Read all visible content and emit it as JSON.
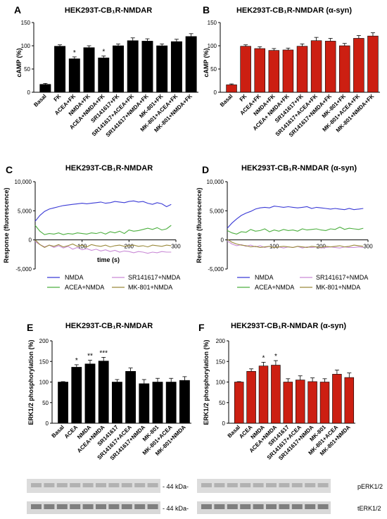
{
  "panels": {
    "A": {
      "letter": "A",
      "title": "HEK293T-CB₁R-NMDAR",
      "ylabel": "cAMP (%)"
    },
    "B": {
      "letter": "B",
      "title": "HEK293T-CB₁R-NMDAR (α-syn)",
      "ylabel": "cAMP (%)"
    },
    "C": {
      "letter": "C",
      "title": "HEK293T-CB₁R-NMDAR",
      "ylabel": "Response (fluorescence)",
      "xlabel": "time (s)"
    },
    "D": {
      "letter": "D",
      "title": "HEK293T-CB₁R-NMDAR (α-syn)",
      "ylabel": "Response (fluorescence)",
      "xlabel": "time (s)"
    },
    "E": {
      "letter": "E",
      "title": "HEK293T-CB₁R-NMDAR",
      "ylabel": "ERK1/2 phosphorylation (%)"
    },
    "F": {
      "letter": "F",
      "title": "HEK293T-CB₁R-NMDAR (α-syn)",
      "ylabel": "ERK1/2 phosphorylation (%)"
    }
  },
  "blots": {
    "marker_top": "- 44 kDa-",
    "marker_bottom": "- 44 kDa-",
    "label_top": "pERK1/2",
    "label_bottom": "tERK1/2"
  },
  "colors": {
    "black_bar": "#000000",
    "red_bar": "#cc1f12",
    "nmda": "#3b3bd6",
    "acea": "#4caf3f",
    "sr": "#c98bd6",
    "mk": "#9a8a3c"
  },
  "chart_data": [
    {
      "panel": "A",
      "type": "bar",
      "color": "black",
      "categories": [
        "Basal",
        "FK",
        "ACEA+FK",
        "NMDA+FK",
        "ACEA+NMDA+FK",
        "SR141617+FK",
        "SR141617+ACEA+FK",
        "SR141617+NMDA+FK",
        "MK-801+FK",
        "MK-801+ACEA+FK",
        "MK-801+NMDA+FK"
      ],
      "values": [
        17,
        99,
        72,
        96,
        74,
        100,
        111,
        110,
        100,
        109,
        120
      ],
      "errors": [
        2,
        3,
        4,
        4,
        4,
        4,
        6,
        5,
        4,
        5,
        6
      ],
      "annotations": [
        "",
        "",
        "*",
        "",
        "*",
        "",
        "",
        "",
        "",
        "",
        ""
      ],
      "ylim": [
        0,
        150
      ],
      "yticks": [
        0,
        50,
        100,
        150
      ]
    },
    {
      "panel": "B",
      "type": "bar",
      "color": "red",
      "categories": [
        "Basal",
        "FK",
        "ACEA+FK",
        "NMDA+FK",
        "ACEA+ NMDA+FK",
        "SR141617+FK",
        "SR141617+ACEA+FK",
        "SR141617+NMDA+FK",
        "MK-801+FK",
        "MK-801+ACEA+FK",
        "MK-801+NMDA+FK"
      ],
      "values": [
        16,
        99,
        94,
        90,
        91,
        99,
        111,
        110,
        100,
        116,
        121
      ],
      "errors": [
        2,
        3,
        4,
        4,
        4,
        5,
        7,
        6,
        5,
        6,
        7
      ],
      "annotations": [
        "",
        "",
        "",
        "",
        "",
        "",
        "",
        "",
        "",
        "",
        ""
      ],
      "ylim": [
        0,
        150
      ],
      "yticks": [
        0,
        50,
        100,
        150
      ]
    },
    {
      "panel": "C",
      "type": "line",
      "xlim": [
        0,
        300
      ],
      "ylim": [
        -5000,
        10000
      ],
      "xticks": [
        100,
        200,
        300
      ],
      "yticks": [
        -5000,
        0,
        5000,
        10000
      ],
      "series": [
        {
          "name": "NMDA",
          "color_key": "nmda",
          "x": [
            0,
            10,
            20,
            30,
            40,
            50,
            60,
            70,
            80,
            90,
            100,
            110,
            120,
            130,
            140,
            150,
            160,
            170,
            180,
            190,
            200,
            210,
            220,
            230,
            240,
            250,
            260,
            270,
            280,
            290
          ],
          "y": [
            3200,
            4200,
            4900,
            5300,
            5500,
            5700,
            5900,
            6000,
            6100,
            6200,
            6300,
            6200,
            6300,
            6400,
            6500,
            6300,
            6400,
            6600,
            6500,
            6400,
            6600,
            6700,
            6500,
            6600,
            6300,
            6100,
            6400,
            6200,
            5700,
            6100
          ]
        },
        {
          "name": "ACEA+NMDA",
          "color_key": "acea",
          "x": [
            0,
            10,
            20,
            30,
            40,
            50,
            60,
            70,
            80,
            90,
            100,
            110,
            120,
            130,
            140,
            150,
            160,
            170,
            180,
            190,
            200,
            210,
            220,
            230,
            240,
            250,
            260,
            270,
            280,
            290
          ],
          "y": [
            2500,
            1500,
            900,
            1100,
            1000,
            1200,
            900,
            1100,
            1000,
            1200,
            1100,
            1000,
            1200,
            1100,
            1300,
            1000,
            1400,
            1200,
            1500,
            1100,
            1700,
            1500,
            1600,
            1800,
            2000,
            1800,
            2100,
            1700,
            1900,
            2500
          ]
        },
        {
          "name": "SR141617+NMDA",
          "color_key": "sr",
          "x": [
            0,
            10,
            20,
            30,
            40,
            50,
            60,
            70,
            80,
            90,
            100,
            110,
            120,
            130,
            140,
            150,
            160,
            170,
            180,
            190,
            200,
            210,
            220,
            230,
            240,
            250,
            260,
            270,
            280,
            290
          ],
          "y": [
            -300,
            -800,
            -1200,
            -900,
            -1300,
            -1000,
            -1400,
            -1100,
            -1600,
            -1300,
            -1700,
            -1500,
            -1800,
            -1600,
            -1900,
            -1700,
            -2000,
            -1800,
            -2100,
            -1900,
            -2000,
            -2200,
            -2000,
            -2100,
            -2300,
            -2100,
            -2200,
            -2000,
            -2100,
            -2100
          ]
        },
        {
          "name": "MK-801+NMDA",
          "color_key": "mk",
          "x": [
            0,
            10,
            20,
            30,
            40,
            50,
            60,
            70,
            80,
            90,
            100,
            110,
            120,
            130,
            140,
            150,
            160,
            170,
            180,
            190,
            200,
            210,
            220,
            230,
            240,
            250,
            260,
            270,
            280,
            290
          ],
          "y": [
            0,
            -800,
            -1300,
            -900,
            -1100,
            -800,
            -1200,
            -1000,
            -700,
            -1100,
            -900,
            -1200,
            -800,
            -1000,
            -1100,
            -900,
            -1200,
            -1000,
            -900,
            -1100,
            -1000,
            -900,
            -1100,
            -1000,
            -1200,
            -900,
            -1000,
            -1100,
            -900,
            -1000
          ]
        }
      ]
    },
    {
      "panel": "D",
      "type": "line",
      "xlim": [
        0,
        300
      ],
      "ylim": [
        -5000,
        10000
      ],
      "xticks": [
        100,
        200,
        300
      ],
      "yticks": [
        -5000,
        0,
        5000,
        10000
      ],
      "series": [
        {
          "name": "NMDA",
          "color_key": "nmda",
          "x": [
            0,
            10,
            20,
            30,
            40,
            50,
            60,
            70,
            80,
            90,
            100,
            110,
            120,
            130,
            140,
            150,
            160,
            170,
            180,
            190,
            200,
            210,
            220,
            230,
            240,
            250,
            260,
            270,
            280,
            290
          ],
          "y": [
            2000,
            2900,
            3600,
            4200,
            4600,
            4900,
            5300,
            5500,
            5600,
            5500,
            5800,
            5700,
            5600,
            5700,
            5600,
            5500,
            5600,
            5700,
            5400,
            5600,
            5500,
            5400,
            5300,
            5400,
            5300,
            5200,
            5400,
            5200,
            5300,
            5400
          ]
        },
        {
          "name": "ACEA+NMDA",
          "color_key": "acea",
          "x": [
            0,
            10,
            20,
            30,
            40,
            50,
            60,
            70,
            80,
            90,
            100,
            110,
            120,
            130,
            140,
            150,
            160,
            170,
            180,
            190,
            200,
            210,
            220,
            230,
            240,
            250,
            260,
            270,
            280,
            290
          ],
          "y": [
            1600,
            1200,
            1000,
            1400,
            1300,
            1800,
            1500,
            1600,
            1900,
            1400,
            1700,
            1500,
            1800,
            1600,
            1700,
            1500,
            1900,
            1700,
            1800,
            1900,
            1700,
            1600,
            1900,
            1800,
            2200,
            1800,
            2000,
            1900,
            1800,
            2000
          ]
        },
        {
          "name": "SR141617+NMDA",
          "color_key": "sr",
          "x": [
            0,
            10,
            20,
            30,
            40,
            50,
            60,
            70,
            80,
            90,
            100,
            110,
            120,
            130,
            140,
            150,
            160,
            170,
            180,
            190,
            200,
            210,
            220,
            230,
            240,
            250,
            260,
            270,
            280,
            290
          ],
          "y": [
            -200,
            -700,
            -1000,
            -800,
            -1100,
            -900,
            -1200,
            -1000,
            -1300,
            -1100,
            -1300,
            -1200,
            -1400,
            -1200,
            -1300,
            -1100,
            -1400,
            -1200,
            -1300,
            -1200,
            -1400,
            -1300,
            -1200,
            -1300,
            -1400,
            -1200,
            -1300,
            -1300,
            -1200,
            -1300
          ]
        },
        {
          "name": "MK-801+NMDA",
          "color_key": "mk",
          "x": [
            0,
            10,
            20,
            30,
            40,
            50,
            60,
            70,
            80,
            90,
            100,
            110,
            120,
            130,
            140,
            150,
            160,
            170,
            180,
            190,
            200,
            210,
            220,
            230,
            240,
            250,
            260,
            270,
            280,
            290
          ],
          "y": [
            100,
            -400,
            -700,
            -900,
            -1000,
            -1200,
            -1100,
            -1300,
            -1200,
            -1100,
            -1300,
            -1200,
            -1100,
            -1200,
            -1300,
            -1100,
            -1200,
            -1300,
            -1100,
            -1200,
            -1300,
            -1100,
            -1200,
            -1100,
            -1000,
            -1200,
            -1100,
            -900,
            -1000,
            -1100
          ]
        }
      ]
    },
    {
      "panel": "E",
      "type": "bar",
      "color": "black",
      "categories": [
        "Basal",
        "ACEA",
        "NMDA",
        "ACEA+NMDA",
        "SR141617",
        "SR141617+ACEA",
        "SR141617+NMDA",
        "MK-801",
        "MK-801+ACEA",
        "MK-801+NMDA"
      ],
      "values": [
        100,
        136,
        144,
        151,
        100,
        126,
        96,
        100,
        100,
        104
      ],
      "errors": [
        1,
        6,
        9,
        9,
        6,
        8,
        10,
        9,
        9,
        9
      ],
      "annotations": [
        "",
        "*",
        "**",
        "***",
        "",
        "",
        "",
        "",
        "",
        ""
      ],
      "ylim": [
        0,
        200
      ],
      "yticks": [
        0,
        50,
        100,
        150,
        200
      ]
    },
    {
      "panel": "F",
      "type": "bar",
      "color": "red",
      "categories": [
        "Basal",
        "ACEA",
        "NMDA",
        "ACEA+NMDA",
        "SR141617",
        "SR141617+ACEA",
        "SR141617+NMDA",
        "MK-801",
        "MK-801+ACEA",
        "MK-801+NMDA"
      ],
      "values": [
        100,
        126,
        139,
        141,
        100,
        105,
        101,
        100,
        119,
        111
      ],
      "errors": [
        1,
        6,
        9,
        11,
        8,
        10,
        9,
        8,
        10,
        11
      ],
      "annotations": [
        "",
        "",
        "*",
        "*",
        "",
        "",
        "",
        "",
        "",
        ""
      ],
      "ylim": [
        0,
        200
      ],
      "yticks": [
        0,
        50,
        100,
        150,
        200
      ]
    }
  ]
}
